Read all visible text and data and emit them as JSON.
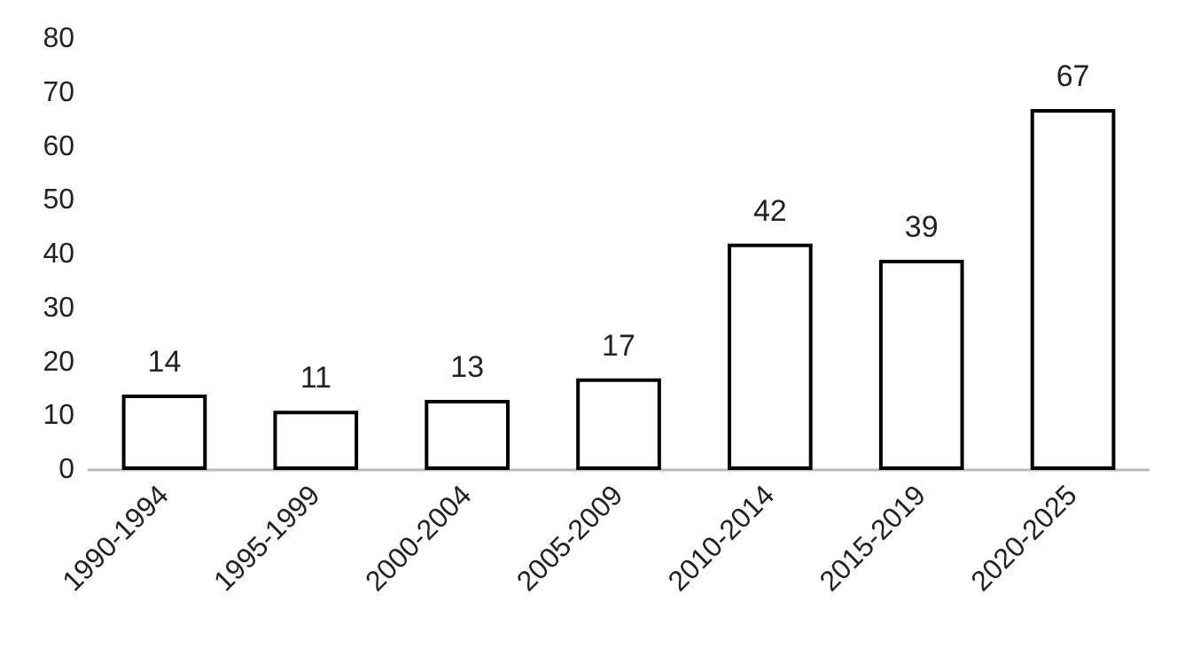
{
  "chart_data": {
    "type": "bar",
    "categories": [
      "1990-1994",
      "1995-1999",
      "2000-2004",
      "2005-2009",
      "2010-2014",
      "2015-2019",
      "2020-2025"
    ],
    "values": [
      14,
      11,
      13,
      17,
      42,
      39,
      67
    ],
    "color": "#ffffff",
    "ylim": [
      0,
      80
    ],
    "yticks": [
      0,
      10,
      20,
      30,
      40,
      50,
      60,
      70,
      80
    ],
    "grid": false,
    "data_labels": true
  }
}
